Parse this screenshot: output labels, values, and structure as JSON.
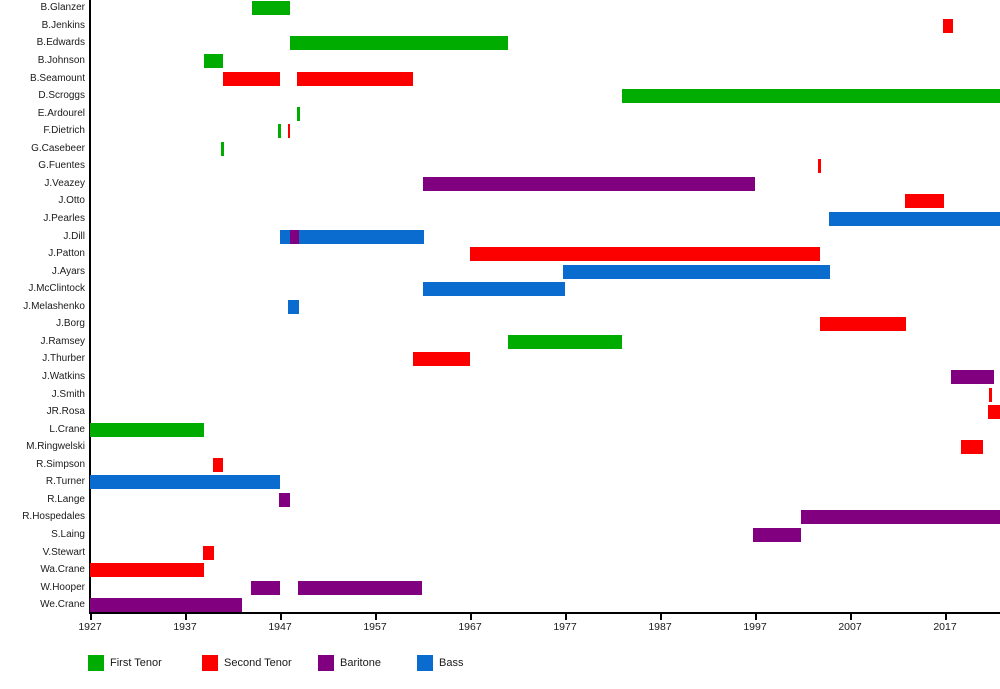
{
  "chart_data": {
    "type": "bar",
    "variant": "horizontal-gantt-timeline",
    "title": "",
    "xlabel": "",
    "ylabel": "",
    "grid": false,
    "legend_position": "bottom",
    "x_axis": {
      "min": 1927,
      "max": 2023,
      "ticks": [
        1927,
        1937,
        1947,
        1957,
        1967,
        1977,
        1987,
        1997,
        2007,
        2017
      ]
    },
    "legend": [
      {
        "label": "First Tenor",
        "color": "#00AC00"
      },
      {
        "label": "Second Tenor",
        "color": "#FC0000"
      },
      {
        "label": "Baritone",
        "color": "#800080"
      },
      {
        "label": "Bass",
        "color": "#0B6CCF"
      }
    ],
    "people": [
      {
        "name": "B.Glanzer",
        "segments": [
          {
            "role": "First Tenor",
            "start": 1944,
            "end": 1948
          }
        ]
      },
      {
        "name": "B.Jenkins",
        "segments": [
          {
            "role": "Second Tenor",
            "start": 2016.8,
            "end": 2017.8
          }
        ]
      },
      {
        "name": "B.Edwards",
        "segments": [
          {
            "role": "First Tenor",
            "start": 1948,
            "end": 1971
          }
        ]
      },
      {
        "name": "B.Johnson",
        "segments": [
          {
            "role": "First Tenor",
            "start": 1939,
            "end": 1941
          }
        ]
      },
      {
        "name": "B.Seamount",
        "segments": [
          {
            "role": "Second Tenor",
            "start": 1941,
            "end": 1947
          },
          {
            "role": "Second Tenor",
            "start": 1948.8,
            "end": 1961
          }
        ]
      },
      {
        "name": "D.Scroggs",
        "segments": [
          {
            "role": "First Tenor",
            "start": 1983,
            "end": 2023
          }
        ]
      },
      {
        "name": "E.Ardourel",
        "segments": [
          {
            "role": "First Tenor",
            "start": 1948.8,
            "end": 1949.1
          }
        ]
      },
      {
        "name": "F.Dietrich",
        "segments": [
          {
            "role": "First Tenor",
            "start": 1946.8,
            "end": 1947.1
          },
          {
            "role": "Second Tenor",
            "start": 1947.8,
            "end": 1948.1
          }
        ]
      },
      {
        "name": "G.Casebeer",
        "segments": [
          {
            "role": "First Tenor",
            "start": 1940.8,
            "end": 1941.1
          }
        ]
      },
      {
        "name": "G.Fuentes",
        "segments": [
          {
            "role": "Second Tenor",
            "start": 2003.6,
            "end": 2003.9
          }
        ]
      },
      {
        "name": "J.Veazey",
        "segments": [
          {
            "role": "Baritone",
            "start": 1962,
            "end": 1997
          }
        ]
      },
      {
        "name": "J.Otto",
        "segments": [
          {
            "role": "Second Tenor",
            "start": 2012.8,
            "end": 2016.9
          }
        ]
      },
      {
        "name": "J.Pearles",
        "segments": [
          {
            "role": "Bass",
            "start": 2004.8,
            "end": 2023
          }
        ]
      },
      {
        "name": "J.Dill",
        "segments": [
          {
            "role": "Bass",
            "start": 1947,
            "end": 1948
          },
          {
            "role": "Baritone",
            "start": 1948,
            "end": 1949
          },
          {
            "role": "Bass",
            "start": 1949,
            "end": 1962.2
          }
        ]
      },
      {
        "name": "J.Patton",
        "segments": [
          {
            "role": "Second Tenor",
            "start": 1967,
            "end": 2003.8
          }
        ]
      },
      {
        "name": "J.Ayars",
        "segments": [
          {
            "role": "Bass",
            "start": 1976.8,
            "end": 2004.9
          }
        ]
      },
      {
        "name": "J.McClintock",
        "segments": [
          {
            "role": "Bass",
            "start": 1962,
            "end": 1977
          }
        ]
      },
      {
        "name": "J.Melashenko",
        "segments": [
          {
            "role": "Bass",
            "start": 1947.8,
            "end": 1949
          }
        ]
      },
      {
        "name": "J.Borg",
        "segments": [
          {
            "role": "Second Tenor",
            "start": 2003.8,
            "end": 2012.9
          }
        ]
      },
      {
        "name": "J.Ramsey",
        "segments": [
          {
            "role": "First Tenor",
            "start": 1971,
            "end": 1983
          }
        ]
      },
      {
        "name": "J.Thurber",
        "segments": [
          {
            "role": "Second Tenor",
            "start": 1961,
            "end": 1967
          }
        ]
      },
      {
        "name": "J.Watkins",
        "segments": [
          {
            "role": "Baritone",
            "start": 2017.6,
            "end": 2022.2
          }
        ]
      },
      {
        "name": "J.Smith",
        "segments": [
          {
            "role": "Second Tenor",
            "start": 2021.6,
            "end": 2021.9
          }
        ]
      },
      {
        "name": "JR.Rosa",
        "segments": [
          {
            "role": "Second Tenor",
            "start": 2021.5,
            "end": 2023
          }
        ]
      },
      {
        "name": "L.Crane",
        "segments": [
          {
            "role": "First Tenor",
            "start": 1927,
            "end": 1939
          }
        ]
      },
      {
        "name": "M.Ringwelski",
        "segments": [
          {
            "role": "Second Tenor",
            "start": 2018.7,
            "end": 2021
          }
        ]
      },
      {
        "name": "R.Simpson",
        "segments": [
          {
            "role": "Second Tenor",
            "start": 1939.9,
            "end": 1941
          }
        ]
      },
      {
        "name": "R.Turner",
        "segments": [
          {
            "role": "Bass",
            "start": 1927,
            "end": 1947
          }
        ]
      },
      {
        "name": "R.Lange",
        "segments": [
          {
            "role": "Baritone",
            "start": 1946.9,
            "end": 1948.1
          }
        ]
      },
      {
        "name": "R.Hospedales",
        "segments": [
          {
            "role": "Baritone",
            "start": 2001.8,
            "end": 2023
          }
        ]
      },
      {
        "name": "S.Laing",
        "segments": [
          {
            "role": "Baritone",
            "start": 1996.8,
            "end": 2001.8
          }
        ]
      },
      {
        "name": "V.Stewart",
        "segments": [
          {
            "role": "Second Tenor",
            "start": 1938.9,
            "end": 1940.1
          }
        ]
      },
      {
        "name": "Wa.Crane",
        "segments": [
          {
            "role": "Second Tenor",
            "start": 1927,
            "end": 1939
          }
        ]
      },
      {
        "name": "W.Hooper",
        "segments": [
          {
            "role": "Baritone",
            "start": 1943.9,
            "end": 1947
          },
          {
            "role": "Baritone",
            "start": 1948.9,
            "end": 1961.9
          }
        ]
      },
      {
        "name": "We.Crane",
        "segments": [
          {
            "role": "Baritone",
            "start": 1927,
            "end": 1943
          }
        ]
      }
    ]
  }
}
